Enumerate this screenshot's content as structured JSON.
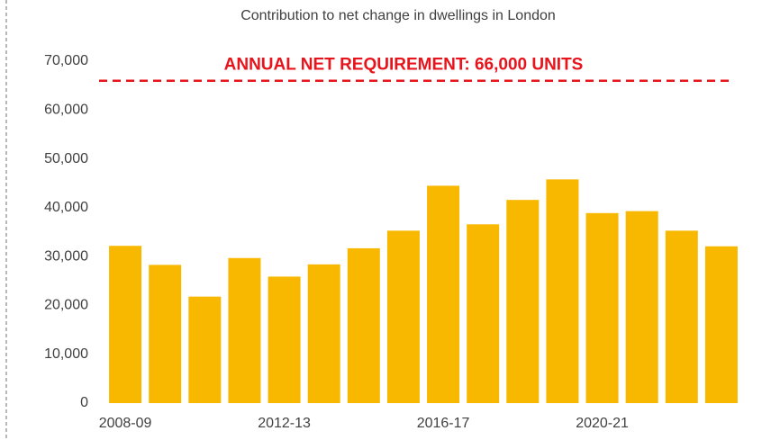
{
  "chart_data": {
    "type": "bar",
    "title": "Contribution to net change in dwellings in London",
    "categories": [
      "2008-09",
      null,
      null,
      null,
      "2012-13",
      null,
      null,
      null,
      "2016-17",
      null,
      null,
      null,
      "2020-21",
      null,
      null,
      null
    ],
    "values": [
      32200,
      28300,
      21800,
      29700,
      25900,
      28400,
      31700,
      35300,
      44500,
      36600,
      41600,
      45800,
      38900,
      39300,
      35300,
      32100
    ],
    "color": "#f9b800",
    "ylim": [
      0,
      70000
    ],
    "yticks": [
      0,
      {
        "value": 10000,
        "label": "10,000"
      },
      {
        "value": 20000,
        "label": "20,000"
      },
      {
        "value": 30000,
        "label": "30,000"
      },
      {
        "value": 40000,
        "label": "40,000"
      },
      {
        "value": 50000,
        "label": "50,000"
      },
      {
        "value": 60000,
        "label": "60,000"
      },
      {
        "value": 70000,
        "label": "70,000"
      }
    ],
    "reference_line": {
      "value": 66000,
      "label": "ANNUAL NET REQUIREMENT: 66,000 UNITS",
      "color": "#e8141c"
    }
  }
}
